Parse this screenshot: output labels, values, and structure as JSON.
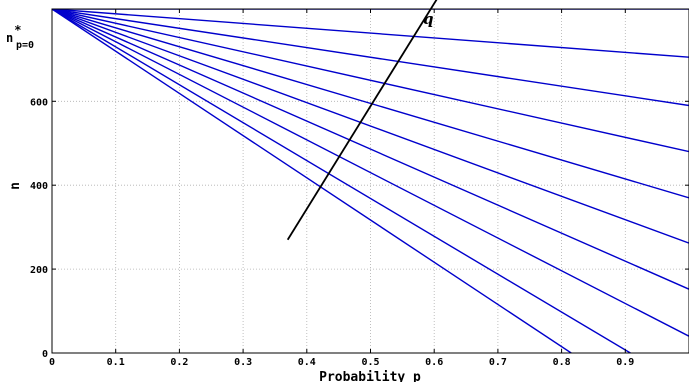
{
  "chart_data": {
    "type": "line",
    "title": "",
    "xlabel": "Probability p",
    "ylabel": "n",
    "xlim": [
      0,
      1
    ],
    "ylim": [
      0,
      820
    ],
    "grid": true,
    "x_ticks": [
      "0",
      "0.1",
      "0.2",
      "0.3",
      "0.4",
      "0.5",
      "0.6",
      "0.7",
      "0.8",
      "0.9"
    ],
    "y_ticks": [
      "0",
      "200",
      "400",
      "600"
    ],
    "y_top_label": {
      "main": "n",
      "sup": "*",
      "sub": "p=0",
      "value": 820
    },
    "line_color": "#0000cc",
    "series": [
      {
        "x": [
          0,
          1
        ],
        "y": [
          820,
          820
        ]
      },
      {
        "x": [
          0,
          1
        ],
        "y": [
          820,
          705
        ]
      },
      {
        "x": [
          0,
          1
        ],
        "y": [
          820,
          590
        ]
      },
      {
        "x": [
          0,
          1
        ],
        "y": [
          820,
          480
        ]
      },
      {
        "x": [
          0,
          1
        ],
        "y": [
          820,
          370
        ]
      },
      {
        "x": [
          0,
          1
        ],
        "y": [
          820,
          262
        ]
      },
      {
        "x": [
          0,
          1
        ],
        "y": [
          820,
          152
        ]
      },
      {
        "x": [
          0,
          1
        ],
        "y": [
          820,
          40
        ]
      },
      {
        "x": [
          0,
          0.908
        ],
        "y": [
          820,
          0
        ]
      },
      {
        "x": [
          0,
          0.815
        ],
        "y": [
          820,
          0
        ]
      }
    ],
    "annotation": {
      "text": "q",
      "arrow_from": [
        0.37,
        270
      ],
      "arrow_to": [
        0.615,
        870
      ]
    }
  }
}
